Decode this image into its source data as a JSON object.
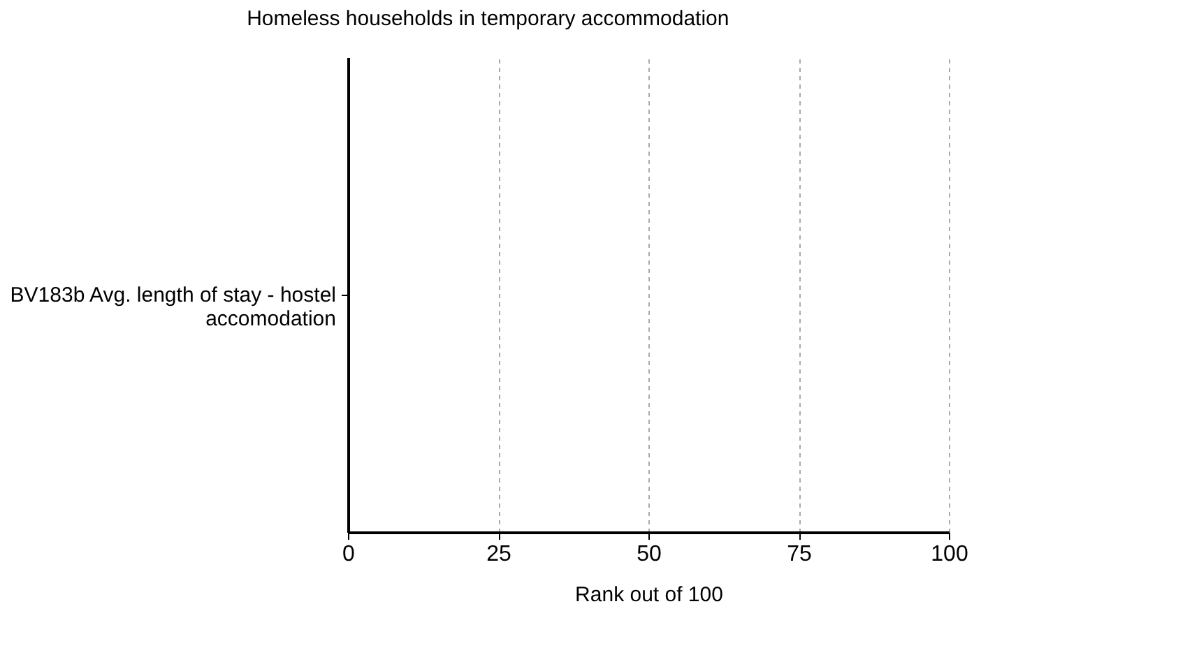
{
  "chart_data": {
    "type": "bar",
    "orientation": "horizontal",
    "title": "Homeless households in temporary accommodation",
    "xlabel": "Rank out of 100",
    "categories": [
      "BV183b Avg. length of stay - hostel accomodation"
    ],
    "values": [
      null
    ],
    "xlim": [
      0,
      100
    ],
    "xticks": [
      0,
      25,
      50,
      75,
      100
    ],
    "grid": "x"
  }
}
